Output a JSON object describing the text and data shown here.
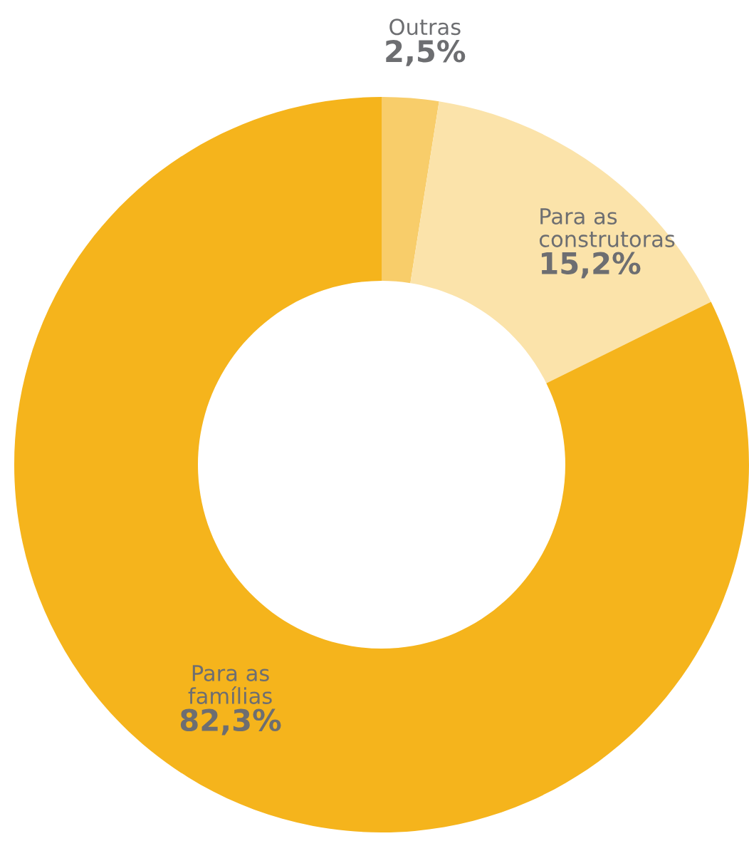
{
  "chart_data": {
    "type": "donut",
    "categories": [
      "Outras",
      "Para as\nconstrutoras",
      "Para as\nfamílias"
    ],
    "values": [
      2.5,
      15.2,
      82.3
    ],
    "colors": [
      "#f8cd6a",
      "#fbe3aa",
      "#f5b41c"
    ],
    "value_labels": [
      "2,5%",
      "15,2%",
      "82,3%"
    ],
    "legend": false
  }
}
